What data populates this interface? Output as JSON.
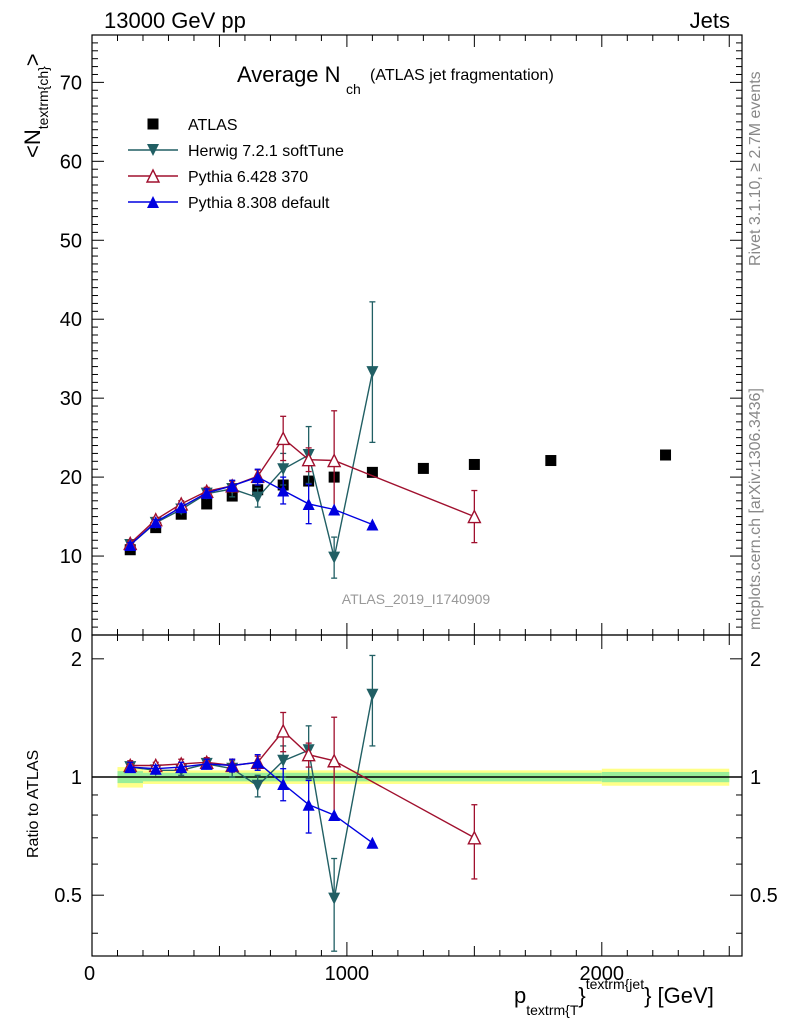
{
  "header": {
    "left": "13000 GeV pp",
    "right": "Jets"
  },
  "side_labels": {
    "rivet": "Rivet 3.1.10, ≥ 2.7M events",
    "mcplots": "mcplots.cern.ch [arXiv:1306.3436]"
  },
  "chart_data": [
    {
      "type": "scatter",
      "title": "Average N",
      "title_subscript": "ch",
      "title_note": "(ATLAS jet fragmentation)",
      "ylabel": "<N",
      "ylabel_sub": "textrm{ch}",
      "ylabel_end": ">",
      "watermark": "ATLAS_2019_I1740909",
      "xlim": [
        0,
        2550
      ],
      "ylim": [
        0,
        76
      ],
      "yticks": [
        0,
        10,
        20,
        30,
        40,
        50,
        60,
        70
      ],
      "legend": "top-left",
      "series": [
        {
          "name": "ATLAS",
          "marker": "square",
          "color": "#000000",
          "line": false,
          "points": [
            {
              "x": 150,
              "y": 10.8
            },
            {
              "x": 250,
              "y": 13.6
            },
            {
              "x": 350,
              "y": 15.3
            },
            {
              "x": 450,
              "y": 16.6
            },
            {
              "x": 550,
              "y": 17.6
            },
            {
              "x": 650,
              "y": 18.4
            },
            {
              "x": 750,
              "y": 19.0
            },
            {
              "x": 850,
              "y": 19.5
            },
            {
              "x": 950,
              "y": 20.0
            },
            {
              "x": 1100,
              "y": 20.6
            },
            {
              "x": 1300,
              "y": 21.1
            },
            {
              "x": 1500,
              "y": 21.6
            },
            {
              "x": 1800,
              "y": 22.1
            },
            {
              "x": 2250,
              "y": 22.8
            }
          ]
        },
        {
          "name": "Herwig 7.2.1 softTune",
          "marker": "triangle-down",
          "color": "#215f64",
          "line": true,
          "points": [
            {
              "x": 150,
              "y": 11.4,
              "err": 0.3
            },
            {
              "x": 250,
              "y": 14.2,
              "err": 0.3
            },
            {
              "x": 350,
              "y": 15.9,
              "err": 0.4
            },
            {
              "x": 450,
              "y": 17.9,
              "err": 0.6
            },
            {
              "x": 550,
              "y": 18.5,
              "err": 1.0
            },
            {
              "x": 650,
              "y": 17.4,
              "err": 1.2
            },
            {
              "x": 750,
              "y": 21.0,
              "err": 2.0
            },
            {
              "x": 850,
              "y": 22.8,
              "err": 3.6
            },
            {
              "x": 950,
              "y": 9.8,
              "err": 2.6
            },
            {
              "x": 1100,
              "y": 33.3,
              "err": 8.9
            }
          ]
        },
        {
          "name": "Pythia 6.428 370",
          "marker": "triangle-up-open",
          "color": "#a0102e",
          "line": true,
          "points": [
            {
              "x": 150,
              "y": 11.6,
              "err": 0.3
            },
            {
              "x": 250,
              "y": 14.6,
              "err": 0.3
            },
            {
              "x": 350,
              "y": 16.6,
              "err": 0.4
            },
            {
              "x": 450,
              "y": 18.2,
              "err": 0.5
            },
            {
              "x": 550,
              "y": 18.9,
              "err": 0.6
            },
            {
              "x": 650,
              "y": 20.1,
              "err": 0.8
            },
            {
              "x": 750,
              "y": 24.9,
              "err": 2.8
            },
            {
              "x": 850,
              "y": 22.2,
              "err": 1.5
            },
            {
              "x": 950,
              "y": 22.1,
              "err": 6.3
            },
            {
              "x": 1500,
              "y": 15.0,
              "err": 3.3
            }
          ]
        },
        {
          "name": "Pythia 8.308 default",
          "marker": "triangle-up",
          "color": "#0000e0",
          "line": true,
          "points": [
            {
              "x": 150,
              "y": 11.4,
              "err": 0.3
            },
            {
              "x": 250,
              "y": 14.3,
              "err": 0.3
            },
            {
              "x": 350,
              "y": 16.2,
              "err": 0.4
            },
            {
              "x": 450,
              "y": 18.0,
              "err": 0.5
            },
            {
              "x": 550,
              "y": 18.9,
              "err": 0.7
            },
            {
              "x": 650,
              "y": 20.0,
              "err": 1.0
            },
            {
              "x": 750,
              "y": 18.3,
              "err": 1.7
            },
            {
              "x": 850,
              "y": 16.6,
              "err": 2.5
            },
            {
              "x": 950,
              "y": 15.9,
              "err": 0
            },
            {
              "x": 1100,
              "y": 14.0,
              "err": 0
            }
          ]
        }
      ]
    },
    {
      "type": "scatter",
      "title": "",
      "ylabel": "Ratio to ATLAS",
      "xlabel": "p",
      "xlabel_sub": "textrm{T",
      "xlabel_sup": "textrm{jet",
      "xlabel_end": "} [GeV]",
      "xlim": [
        0,
        2550
      ],
      "ylim": [
        0.35,
        2.3
      ],
      "ylog": true,
      "yticks": [
        0.5,
        1,
        2
      ],
      "xticks": [
        0,
        1000,
        2000
      ],
      "band": [
        {
          "x0": 100,
          "x1": 200,
          "inner": [
            0.965,
            1.035
          ],
          "outer": [
            0.94,
            1.06
          ]
        },
        {
          "x0": 200,
          "x1": 2000,
          "inner": [
            0.975,
            1.025
          ],
          "outer": [
            0.96,
            1.04
          ]
        },
        {
          "x0": 2000,
          "x1": 2500,
          "inner": [
            0.97,
            1.03
          ],
          "outer": [
            0.95,
            1.05
          ]
        }
      ],
      "series": [
        {
          "name": "Herwig 7.2.1 softTune",
          "marker": "triangle-down",
          "color": "#215f64",
          "points": [
            {
              "x": 150,
              "y": 1.06,
              "err": 0.03
            },
            {
              "x": 250,
              "y": 1.04,
              "err": 0.02
            },
            {
              "x": 350,
              "y": 1.04,
              "err": 0.03
            },
            {
              "x": 450,
              "y": 1.08,
              "err": 0.03
            },
            {
              "x": 550,
              "y": 1.05,
              "err": 0.05
            },
            {
              "x": 650,
              "y": 0.95,
              "err": 0.06
            },
            {
              "x": 750,
              "y": 1.1,
              "err": 0.1
            },
            {
              "x": 850,
              "y": 1.17,
              "err": 0.18
            },
            {
              "x": 950,
              "y": 0.49,
              "err": 0.13
            },
            {
              "x": 1100,
              "y": 1.62,
              "err": 0.42
            }
          ]
        },
        {
          "name": "Pythia 6.428 370",
          "marker": "triangle-up-open",
          "color": "#a0102e",
          "points": [
            {
              "x": 150,
              "y": 1.07,
              "err": 0.03
            },
            {
              "x": 250,
              "y": 1.07,
              "err": 0.02
            },
            {
              "x": 350,
              "y": 1.08,
              "err": 0.03
            },
            {
              "x": 450,
              "y": 1.09,
              "err": 0.03
            },
            {
              "x": 550,
              "y": 1.07,
              "err": 0.04
            },
            {
              "x": 650,
              "y": 1.09,
              "err": 0.04
            },
            {
              "x": 750,
              "y": 1.31,
              "err": 0.15
            },
            {
              "x": 850,
              "y": 1.14,
              "err": 0.08
            },
            {
              "x": 950,
              "y": 1.1,
              "err": 0.32
            },
            {
              "x": 1500,
              "y": 0.7,
              "err": 0.15
            }
          ]
        },
        {
          "name": "Pythia 8.308 default",
          "marker": "triangle-up",
          "color": "#0000e0",
          "points": [
            {
              "x": 150,
              "y": 1.06,
              "err": 0.03
            },
            {
              "x": 250,
              "y": 1.05,
              "err": 0.02
            },
            {
              "x": 350,
              "y": 1.06,
              "err": 0.03
            },
            {
              "x": 450,
              "y": 1.08,
              "err": 0.03
            },
            {
              "x": 550,
              "y": 1.07,
              "err": 0.04
            },
            {
              "x": 650,
              "y": 1.09,
              "err": 0.05
            },
            {
              "x": 750,
              "y": 0.96,
              "err": 0.09
            },
            {
              "x": 850,
              "y": 0.85,
              "err": 0.13
            },
            {
              "x": 950,
              "y": 0.8,
              "err": 0
            },
            {
              "x": 1100,
              "y": 0.68,
              "err": 0
            }
          ]
        }
      ]
    }
  ]
}
